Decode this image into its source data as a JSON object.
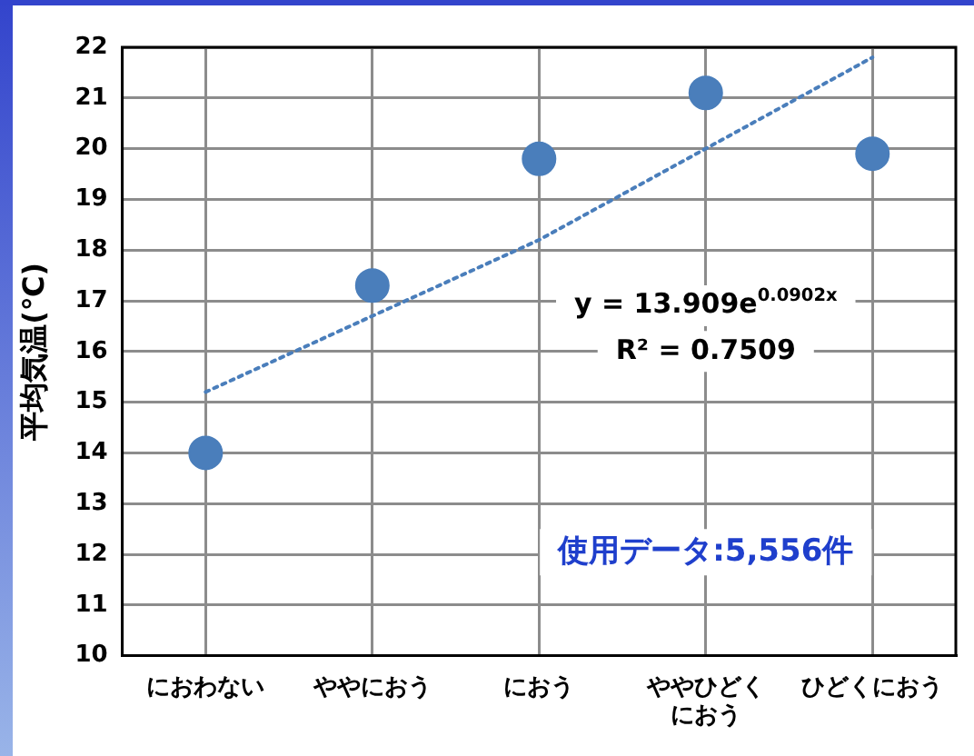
{
  "chart_data": {
    "type": "scatter",
    "ylabel": "平均気温(℃)",
    "categories": [
      "におわない",
      "ややにおう",
      "におう",
      "ややひどくにおう",
      "ひどくにおう"
    ],
    "ylim": [
      10,
      22
    ],
    "yticks": [
      10,
      11,
      12,
      13,
      14,
      15,
      16,
      17,
      18,
      19,
      20,
      21,
      22
    ],
    "grid": true,
    "marker": "circle",
    "series": [
      {
        "color": "#4a7ebb",
        "values": [
          14.0,
          17.3,
          19.8,
          21.1,
          19.9
        ]
      },
      {
        "type": "line",
        "color": "#4a7ebb",
        "values": [
          15.2,
          16.7,
          18.2,
          20.0,
          21.8
        ],
        "line_style": "dotted",
        "marker": "none"
      }
    ],
    "annotations": [
      "y = 13.909e$^{0.0902x}$",
      "R² = 0.7509",
      "使用データ:5,556件"
    ]
  }
}
